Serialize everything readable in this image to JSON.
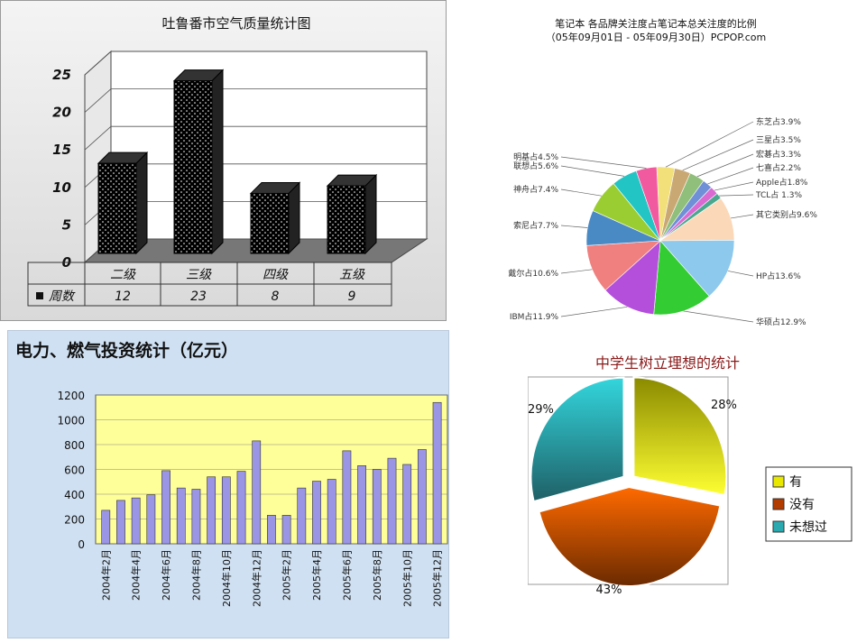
{
  "charts": {
    "turpan": {
      "title": "吐鲁番市空气质量统计图",
      "categories": [
        "二级",
        "三级",
        "四级",
        "五级"
      ],
      "series_name": "周数",
      "values": [
        12,
        23,
        8,
        9
      ],
      "yticks": [
        "0",
        "5",
        "10",
        "15",
        "20",
        "25"
      ],
      "value_labels": [
        "12",
        "23",
        "8",
        "9"
      ]
    },
    "laptop": {
      "title": "笔记本 各品牌关注度占笔记本总关注度的比例",
      "subtitle": "（05年09月01日 - 05年09月30日）PCPOP.com",
      "slices": [
        {
          "label": "东芝占3.9%",
          "value": 3.9,
          "color": "#f2e07a"
        },
        {
          "label": "三星占3.5%",
          "value": 3.5,
          "color": "#c9a874"
        },
        {
          "label": "宏碁占3.3%",
          "value": 3.3,
          "color": "#8fbf7a"
        },
        {
          "label": "七喜占2.2%",
          "value": 2.2,
          "color": "#6f8fd6"
        },
        {
          "label": "Apple占1.8%",
          "value": 1.8,
          "color": "#d86ad2"
        },
        {
          "label": "TCL占 1.3%",
          "value": 1.3,
          "color": "#4aa88f"
        },
        {
          "label": "其它类别占9.6%",
          "value": 9.6,
          "color": "#fbd8b8"
        },
        {
          "label": "HP占13.6%",
          "value": 13.6,
          "color": "#8cc9ec"
        },
        {
          "label": "华硕占12.9%",
          "value": 12.9,
          "color": "#33cc33"
        },
        {
          "label": "IBM占11.9%",
          "value": 11.9,
          "color": "#b44fdc"
        },
        {
          "label": "戴尔占10.6%",
          "value": 10.6,
          "color": "#f08080"
        },
        {
          "label": "索尼占7.7%",
          "value": 7.7,
          "color": "#4a8ac4"
        },
        {
          "label": "神舟占7.4%",
          "value": 7.4,
          "color": "#9acd32"
        },
        {
          "label": "联想占5.6%",
          "value": 5.6,
          "color": "#22c4c4"
        },
        {
          "label": "明基占4.5%",
          "value": 4.5,
          "color": "#f25aa0"
        }
      ]
    },
    "power": {
      "title": "电力、燃气投资统计（亿元）",
      "yticks": [
        "0",
        "200",
        "400",
        "600",
        "800",
        "1000",
        "1200"
      ],
      "ylim": [
        0,
        1200
      ],
      "bar_color": "#9b95e6",
      "xlabels": [
        "2004年2月",
        "2004年4月",
        "2004年6月",
        "2004年8月",
        "2004年10月",
        "2004年12月",
        "2005年2月",
        "2005年4月",
        "2005年6月",
        "2005年8月",
        "2005年10月",
        "2005年12月"
      ],
      "values": [
        270,
        350,
        370,
        395,
        590,
        450,
        440,
        540,
        540,
        585,
        830,
        230,
        230,
        450,
        505,
        520,
        750,
        630,
        600,
        690,
        640,
        760,
        1140
      ]
    },
    "ideal": {
      "title": "中学生树立理想的统计",
      "slices": [
        {
          "name": "有",
          "value": 28,
          "label": "28%",
          "color": "#e8e800"
        },
        {
          "name": "没有",
          "value": 43,
          "label": "43%",
          "color": "#e65c00"
        },
        {
          "name": "未想过",
          "value": 29,
          "label": "29%",
          "color": "#2aaab0"
        }
      ]
    }
  }
}
